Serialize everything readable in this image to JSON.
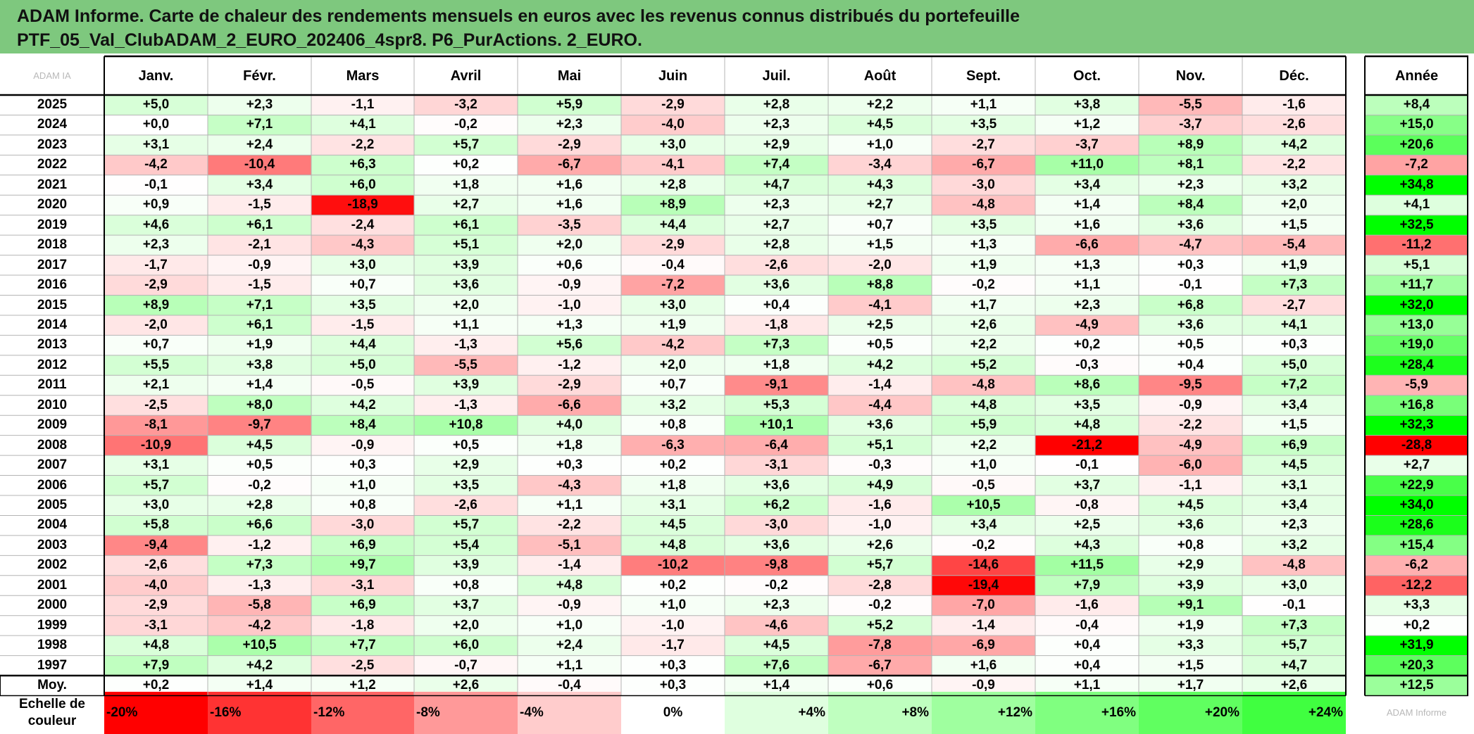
{
  "title": {
    "line1": "ADAM Informe. Carte de chaleur des rendements mensuels en euros avec les revenus connus distribués du portefeuille",
    "line2": "PTF_05_Val_ClubADAM_2_EURO_202406_4spr8. P6_PurActions. 2_EURO."
  },
  "corner_watermark": "ADAM IA",
  "legend_watermark": "ADAM Informe",
  "colors": {
    "header_bg": "#7ec87e",
    "neg_max": "#ff0000",
    "pos_max": "#00ff00",
    "neutral": "#ffffff"
  },
  "chart_data": {
    "type": "heatmap",
    "title": "ADAM Informe. Carte de chaleur des rendements mensuels en euros avec les revenus connus distribués du portefeuille PTF_05_Val_ClubADAM_2_EURO_202406_4spr8. P6_PurActions. 2_EURO.",
    "columns": [
      "Janv.",
      "Févr.",
      "Mars",
      "Avril",
      "Mai",
      "Juin",
      "Juil.",
      "Août",
      "Sept.",
      "Oct.",
      "Nov.",
      "Déc."
    ],
    "annual_label": "Année",
    "rows": [
      {
        "year": "2025",
        "values": [
          "+5,0",
          "+2,3",
          "-1,1",
          "-3,2",
          "+5,9",
          "-2,9",
          "+2,8",
          "+2,2",
          "+1,1",
          "+3,8",
          "-5,5",
          "-1,6"
        ],
        "annual": "+8,4"
      },
      {
        "year": "2024",
        "values": [
          "+0,0",
          "+7,1",
          "+4,1",
          "-0,2",
          "+2,3",
          "-4,0",
          "+2,3",
          "+4,5",
          "+3,5",
          "+1,2",
          "-3,7",
          "-2,6"
        ],
        "annual": "+15,0"
      },
      {
        "year": "2023",
        "values": [
          "+3,1",
          "+2,4",
          "-2,2",
          "+5,7",
          "-2,9",
          "+3,0",
          "+2,9",
          "+1,0",
          "-2,7",
          "-3,7",
          "+8,9",
          "+4,2"
        ],
        "annual": "+20,6"
      },
      {
        "year": "2022",
        "values": [
          "-4,2",
          "-10,4",
          "+6,3",
          "+0,2",
          "-6,7",
          "-4,1",
          "+7,4",
          "-3,4",
          "-6,7",
          "+11,0",
          "+8,1",
          "-2,2"
        ],
        "annual": "-7,2"
      },
      {
        "year": "2021",
        "values": [
          "-0,1",
          "+3,4",
          "+6,0",
          "+1,8",
          "+1,6",
          "+2,8",
          "+4,7",
          "+4,3",
          "-3,0",
          "+3,4",
          "+2,3",
          "+3,2"
        ],
        "annual": "+34,8"
      },
      {
        "year": "2020",
        "values": [
          "+0,9",
          "-1,5",
          "-18,9",
          "+2,7",
          "+1,6",
          "+8,9",
          "+2,3",
          "+2,7",
          "-4,8",
          "+1,4",
          "+8,4",
          "+2,0"
        ],
        "annual": "+4,1"
      },
      {
        "year": "2019",
        "values": [
          "+4,6",
          "+6,1",
          "-2,4",
          "+6,1",
          "-3,5",
          "+4,4",
          "+2,7",
          "+0,7",
          "+3,5",
          "+1,6",
          "+3,6",
          "+1,5"
        ],
        "annual": "+32,5"
      },
      {
        "year": "2018",
        "values": [
          "+2,3",
          "-2,1",
          "-4,3",
          "+5,1",
          "+2,0",
          "-2,9",
          "+2,8",
          "+1,5",
          "+1,3",
          "-6,6",
          "-4,7",
          "-5,4"
        ],
        "annual": "-11,2"
      },
      {
        "year": "2017",
        "values": [
          "-1,7",
          "-0,9",
          "+3,0",
          "+3,9",
          "+0,6",
          "-0,4",
          "-2,6",
          "-2,0",
          "+1,9",
          "+1,3",
          "+0,3",
          "+1,9"
        ],
        "annual": "+5,1"
      },
      {
        "year": "2016",
        "values": [
          "-2,9",
          "-1,5",
          "+0,7",
          "+3,6",
          "-0,9",
          "-7,2",
          "+3,6",
          "+8,8",
          "-0,2",
          "+1,1",
          "-0,1",
          "+7,3"
        ],
        "annual": "+11,7"
      },
      {
        "year": "2015",
        "values": [
          "+8,9",
          "+7,1",
          "+3,5",
          "+2,0",
          "-1,0",
          "+3,0",
          "+0,4",
          "-4,1",
          "+1,7",
          "+2,3",
          "+6,8",
          "-2,7"
        ],
        "annual": "+32,0"
      },
      {
        "year": "2014",
        "values": [
          "-2,0",
          "+6,1",
          "-1,5",
          "+1,1",
          "+1,3",
          "+1,9",
          "-1,8",
          "+2,5",
          "+2,6",
          "-4,9",
          "+3,6",
          "+4,1"
        ],
        "annual": "+13,0"
      },
      {
        "year": "2013",
        "values": [
          "+0,7",
          "+1,9",
          "+4,4",
          "-1,3",
          "+5,6",
          "-4,2",
          "+7,3",
          "+0,5",
          "+2,2",
          "+0,2",
          "+0,5",
          "+0,3"
        ],
        "annual": "+19,0"
      },
      {
        "year": "2012",
        "values": [
          "+5,5",
          "+3,8",
          "+5,0",
          "-5,5",
          "-1,2",
          "+2,0",
          "+1,8",
          "+4,2",
          "+5,2",
          "-0,3",
          "+0,4",
          "+5,0"
        ],
        "annual": "+28,4"
      },
      {
        "year": "2011",
        "values": [
          "+2,1",
          "+1,4",
          "-0,5",
          "+3,9",
          "-2,9",
          "+0,7",
          "-9,1",
          "-1,4",
          "-4,8",
          "+8,6",
          "-9,5",
          "+7,2"
        ],
        "annual": "-5,9"
      },
      {
        "year": "2010",
        "values": [
          "-2,5",
          "+8,0",
          "+4,2",
          "-1,3",
          "-6,6",
          "+3,2",
          "+5,3",
          "-4,4",
          "+4,8",
          "+3,5",
          "-0,9",
          "+3,4"
        ],
        "annual": "+16,8"
      },
      {
        "year": "2009",
        "values": [
          "-8,1",
          "-9,7",
          "+8,4",
          "+10,8",
          "+4,0",
          "+0,8",
          "+10,1",
          "+3,6",
          "+5,9",
          "+4,8",
          "-2,2",
          "+1,5"
        ],
        "annual": "+32,3"
      },
      {
        "year": "2008",
        "values": [
          "-10,9",
          "+4,5",
          "-0,9",
          "+0,5",
          "+1,8",
          "-6,3",
          "-6,4",
          "+5,1",
          "+2,2",
          "-21,2",
          "-4,9",
          "+6,9"
        ],
        "annual": "-28,8"
      },
      {
        "year": "2007",
        "values": [
          "+3,1",
          "+0,5",
          "+0,3",
          "+2,9",
          "+0,3",
          "+0,2",
          "-3,1",
          "-0,3",
          "+1,0",
          "-0,1",
          "-6,0",
          "+4,5"
        ],
        "annual": "+2,7"
      },
      {
        "year": "2006",
        "values": [
          "+5,7",
          "-0,2",
          "+1,0",
          "+3,5",
          "-4,3",
          "+1,8",
          "+3,6",
          "+4,9",
          "-0,5",
          "+3,7",
          "-1,1",
          "+3,1"
        ],
        "annual": "+22,9"
      },
      {
        "year": "2005",
        "values": [
          "+3,0",
          "+2,8",
          "+0,8",
          "-2,6",
          "+1,1",
          "+3,1",
          "+6,2",
          "-1,6",
          "+10,5",
          "-0,8",
          "+4,5",
          "+3,4"
        ],
        "annual": "+34,0"
      },
      {
        "year": "2004",
        "values": [
          "+5,8",
          "+6,6",
          "-3,0",
          "+5,7",
          "-2,2",
          "+4,5",
          "-3,0",
          "-1,0",
          "+3,4",
          "+2,5",
          "+3,6",
          "+2,3"
        ],
        "annual": "+28,6"
      },
      {
        "year": "2003",
        "values": [
          "-9,4",
          "-1,2",
          "+6,9",
          "+5,4",
          "-5,1",
          "+4,8",
          "+3,6",
          "+2,6",
          "-0,2",
          "+4,3",
          "+0,8",
          "+3,2"
        ],
        "annual": "+15,4"
      },
      {
        "year": "2002",
        "values": [
          "-2,6",
          "+7,3",
          "+9,7",
          "+3,9",
          "-1,4",
          "-10,2",
          "-9,8",
          "+5,7",
          "-14,6",
          "+11,5",
          "+2,9",
          "-4,8"
        ],
        "annual": "-6,2"
      },
      {
        "year": "2001",
        "values": [
          "-4,0",
          "-1,3",
          "-3,1",
          "+0,8",
          "+4,8",
          "+0,2",
          "-0,2",
          "-2,8",
          "-19,4",
          "+7,9",
          "+3,9",
          "+3,0"
        ],
        "annual": "-12,2"
      },
      {
        "year": "2000",
        "values": [
          "-2,9",
          "-5,8",
          "+6,9",
          "+3,7",
          "-0,9",
          "+1,0",
          "+2,3",
          "-0,2",
          "-7,0",
          "-1,6",
          "+9,1",
          "-0,1"
        ],
        "annual": "+3,3"
      },
      {
        "year": "1999",
        "values": [
          "-3,1",
          "-4,2",
          "-1,8",
          "+2,0",
          "+1,0",
          "-1,0",
          "-4,6",
          "+5,2",
          "-1,4",
          "-0,4",
          "+1,9",
          "+7,3"
        ],
        "annual": "+0,2"
      },
      {
        "year": "1998",
        "values": [
          "+4,8",
          "+10,5",
          "+7,7",
          "+6,0",
          "+2,4",
          "-1,7",
          "+4,5",
          "-7,8",
          "-6,9",
          "+0,4",
          "+3,3",
          "+5,7"
        ],
        "annual": "+31,9"
      },
      {
        "year": "1997",
        "values": [
          "+7,9",
          "+4,2",
          "-2,5",
          "-0,7",
          "+1,1",
          "+0,3",
          "+7,6",
          "-6,7",
          "+1,6",
          "+0,4",
          "+1,5",
          "+4,7"
        ],
        "annual": "+20,3"
      }
    ],
    "average": {
      "label": "Moy.",
      "values": [
        "+0,2",
        "+1,4",
        "+1,2",
        "+2,6",
        "-0,4",
        "+0,3",
        "+1,4",
        "+0,6",
        "-0,9",
        "+1,1",
        "+1,7",
        "+2,6"
      ],
      "annual": "+12,5"
    },
    "scale": {
      "label_line1": "Echelle de",
      "label_line2": "couleur",
      "stops": [
        -20,
        -16,
        -12,
        -8,
        -4,
        0,
        4,
        8,
        12,
        16,
        20,
        24
      ],
      "labels": [
        "-20%",
        "-16%",
        "-12%",
        "-8%",
        "-4%",
        "0%",
        "+4%",
        "+8%",
        "+12%",
        "+16%",
        "+20%",
        "+24%"
      ]
    }
  }
}
